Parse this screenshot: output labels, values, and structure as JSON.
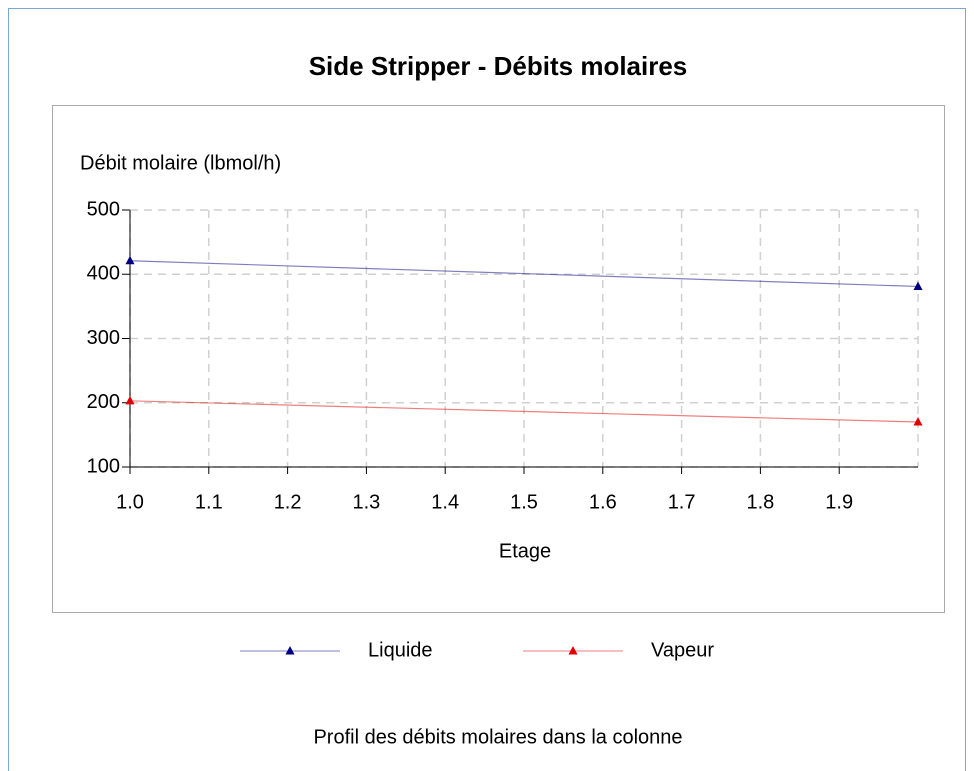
{
  "chart_data": {
    "type": "line",
    "title": "Side Stripper - Débits molaires",
    "y_label": "Débit molaire (lbmol/h)",
    "x_label": "Etage",
    "caption": "Profil des débits molaires dans la colonne",
    "x": [
      1,
      2
    ],
    "series": [
      {
        "name": "Liquide",
        "color": "#000080",
        "values": [
          421,
          381
        ]
      },
      {
        "name": "Vapeur",
        "color": "#e00000",
        "values": [
          203,
          170
        ]
      }
    ],
    "xlim": [
      1,
      2
    ],
    "xticks": [
      {
        "value": 1,
        "label": "1.0"
      },
      {
        "value": 1.1,
        "label": "1.1"
      },
      {
        "value": 1.2,
        "label": "1.2"
      },
      {
        "value": 1.3,
        "label": "1.3"
      },
      {
        "value": 1.4,
        "label": "1.4"
      },
      {
        "value": 1.5,
        "label": "1.5"
      },
      {
        "value": 1.6,
        "label": "1.6"
      },
      {
        "value": 1.7,
        "label": "1.7"
      },
      {
        "value": 1.8,
        "label": "1.8"
      },
      {
        "value": 1.9,
        "label": "1.9"
      }
    ],
    "ylim": [
      100,
      500
    ],
    "yticks": [
      100,
      200,
      300,
      400,
      500
    ],
    "grid": true,
    "legend": "bottom"
  }
}
